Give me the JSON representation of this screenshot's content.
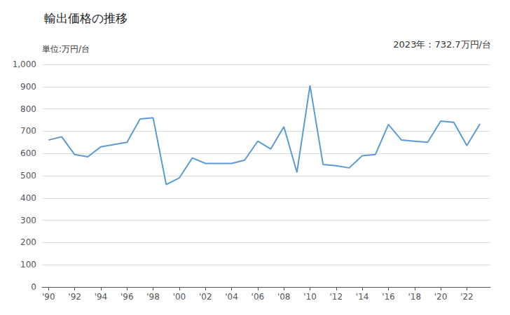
{
  "chart_data": {
    "type": "line",
    "title": "輸出価格の推移",
    "ylabel": "単位:万円/台",
    "annotations": [
      "2023年：732.7万円/台"
    ],
    "x": [
      1990,
      1991,
      1992,
      1993,
      1994,
      1995,
      1996,
      1997,
      1998,
      1999,
      2000,
      2001,
      2002,
      2003,
      2004,
      2005,
      2006,
      2007,
      2008,
      2009,
      2010,
      2011,
      2012,
      2013,
      2014,
      2015,
      2016,
      2017,
      2018,
      2019,
      2020,
      2021,
      2022,
      2023
    ],
    "values": [
      660,
      675,
      595,
      585,
      630,
      640,
      650,
      755,
      760,
      460,
      490,
      580,
      555,
      555,
      555,
      570,
      655,
      620,
      720,
      515,
      905,
      550,
      545,
      535,
      590,
      595,
      730,
      660,
      655,
      650,
      745,
      740,
      635,
      732.7
    ],
    "color": "#5b9bd5",
    "xlim": [
      1989.5,
      2023.8
    ],
    "xticks": [
      {
        "value": 1990,
        "label": "'90"
      },
      {
        "value": 1992,
        "label": "'92"
      },
      {
        "value": 1994,
        "label": "'94"
      },
      {
        "value": 1996,
        "label": "'96"
      },
      {
        "value": 1998,
        "label": "'98"
      },
      {
        "value": 2000,
        "label": "'00"
      },
      {
        "value": 2002,
        "label": "'02"
      },
      {
        "value": 2004,
        "label": "'04"
      },
      {
        "value": 2006,
        "label": "'06"
      },
      {
        "value": 2008,
        "label": "'08"
      },
      {
        "value": 2010,
        "label": "'10"
      },
      {
        "value": 2012,
        "label": "'12"
      },
      {
        "value": 2014,
        "label": "'14"
      },
      {
        "value": 2016,
        "label": "'16"
      },
      {
        "value": 2018,
        "label": "'18"
      },
      {
        "value": 2020,
        "label": "'20"
      },
      {
        "value": 2022,
        "label": "'22"
      }
    ],
    "ylim": [
      0,
      1000
    ],
    "yticks": [
      0,
      100,
      200,
      300,
      400,
      500,
      600,
      700,
      800,
      900,
      {
        "value": 1000,
        "label": "1,000"
      }
    ],
    "grid": true
  }
}
